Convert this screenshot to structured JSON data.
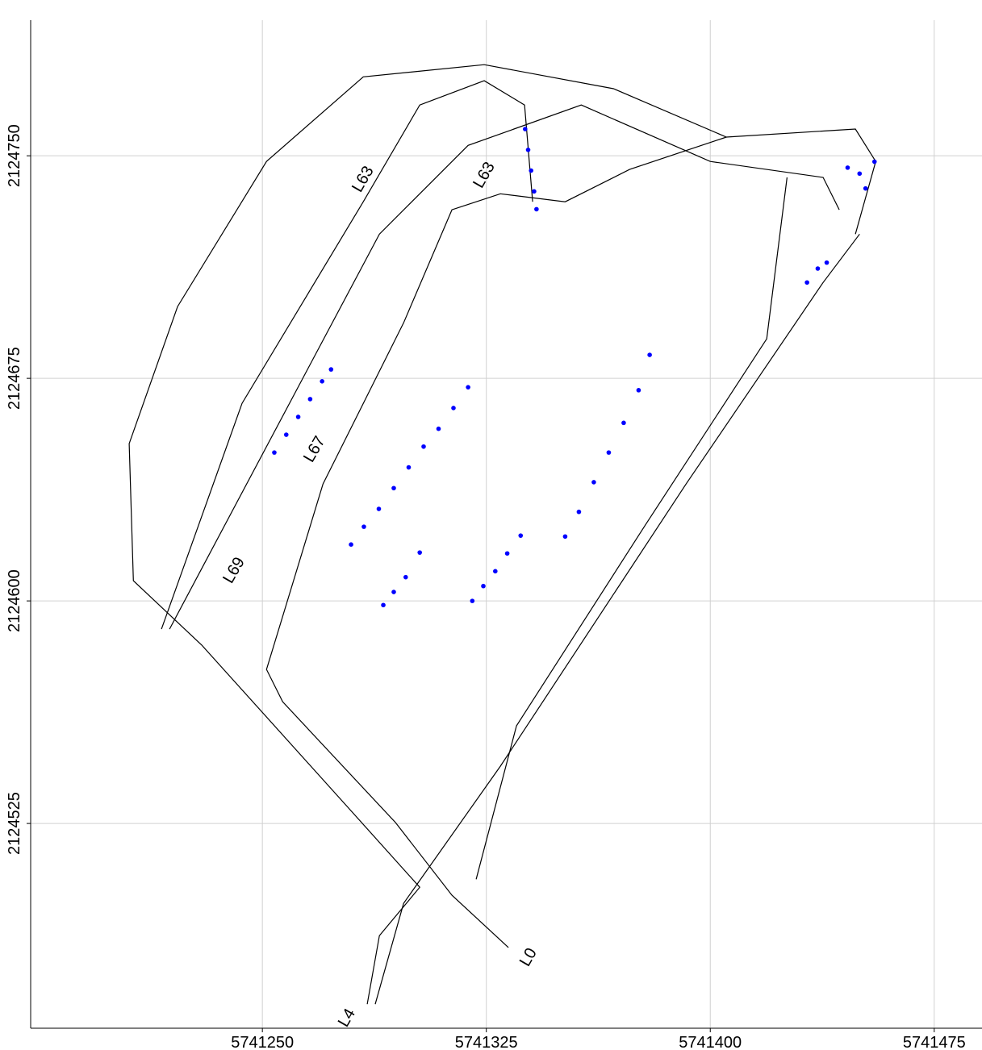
{
  "chart_data": {
    "type": "line",
    "xlim": [
      5741172.4,
      5741491
    ],
    "ylim": [
      2124456,
      2124795.7
    ],
    "xticks": [
      5741250,
      5741325,
      5741400,
      5741475
    ],
    "yticks": [
      2124525,
      2124600,
      2124675,
      2124750
    ],
    "grid": true,
    "series": [
      {
        "color": "#000000",
        "x": [
          5741285.1,
          5741289.2,
          5741302.7,
          5741278.4,
          5741229.7,
          5741206.8,
          5741205.4,
          5741221.6,
          5741251.4,
          5741283.8,
          5741324.3,
          5741367.6,
          5741405.4,
          5741448.6,
          5741455.4,
          5741448.6
        ],
        "y": [
          2124464.1,
          2124487.2,
          2124503.5,
          2124530.7,
          2124585.1,
          2124606.8,
          2124653.0,
          2124699.2,
          2124748.1,
          2124776.6,
          2124780.7,
          2124772.6,
          2124756.3,
          2124759.0,
          2124748.1,
          2124723.6
        ]
      },
      {
        "color": "#000000",
        "x": [
          5741332.4,
          5741313.5,
          5741294.6,
          5741256.8,
          5741251.4,
          5741270.3,
          5741297.3,
          5741313.5,
          5741329.7,
          5741351.4,
          5741373.0,
          5741405.4
        ],
        "y": [
          2124483.2,
          2124500.8,
          2124525.3,
          2124566.0,
          2124576.9,
          2124639.4,
          2124693.7,
          2124731.8,
          2124737.2,
          2124734.5,
          2124745.4,
          2124756.3
        ]
      },
      {
        "color": "#000000",
        "x": [
          5741321.6,
          5741335.1,
          5741378.4,
          5741418.9,
          5741425.7
        ],
        "y": [
          2124506.2,
          2124557.9,
          2124625.8,
          2124688.3,
          2124742.7
        ]
      },
      {
        "color": "#000000",
        "x": [
          5741287.8,
          5741297.3,
          5741329.7,
          5741391.9,
          5741437.8,
          5741450.0
        ],
        "y": [
          2124464.1,
          2124498.1,
          2124544.3,
          2124639.4,
          2124707.3,
          2124723.6
        ]
      },
      {
        "color": "#000000",
        "x": [
          5741216.2,
          5741243.2,
          5741283.8,
          5741302.7,
          5741324.3,
          5741337.8,
          5741340.5
        ],
        "y": [
          2124590.5,
          2124666.6,
          2124734.5,
          2124767.1,
          2124775.3,
          2124767.1,
          2124734.5
        ]
      },
      {
        "color": "#000000",
        "x": [
          5741218.9,
          5741289.2,
          5741318.9,
          5741356.8,
          5741400.0,
          5741437.8,
          5741443.2
        ],
        "y": [
          2124590.5,
          2124723.6,
          2124753.5,
          2124767.1,
          2124748.1,
          2124742.7,
          2124731.8
        ]
      }
    ],
    "points": {
      "color": "#0000ff",
      "x": [
        5741279.7,
        5741284,
        5741289,
        5741294,
        5741299,
        5741304,
        5741309,
        5741314,
        5741318.9,
        5741320.3,
        5741324,
        5741328,
        5741332,
        5741336.5,
        5741351.4,
        5741356,
        5741361,
        5741366,
        5741371,
        5741376,
        5741379.7,
        5741338,
        5741339,
        5741340,
        5741341,
        5741341.8,
        5741446,
        5741450,
        5741455,
        5741452,
        5741254,
        5741258,
        5741262,
        5741266,
        5741270,
        5741273,
        5741290.5,
        5741294,
        5741298,
        5741302.7,
        5741432.4,
        5741436,
        5741439
      ],
      "y": [
        2124619,
        2124625,
        2124631,
        2124638,
        2124645,
        2124652,
        2124658,
        2124665,
        2124672,
        2124600,
        2124605,
        2124610,
        2124616,
        2124622,
        2124621.7,
        2124630,
        2124640,
        2124650,
        2124660,
        2124671,
        2124682.9,
        2124759,
        2124752,
        2124745,
        2124738,
        2124732,
        2124746,
        2124744,
        2124748,
        2124739,
        2124650,
        2124656,
        2124662,
        2124668,
        2124674,
        2124678,
        2124598.6,
        2124603,
        2124608,
        2124616.3,
        2124707.3,
        2124712,
        2124714
      ]
    },
    "labels": [
      {
        "text": "L63",
        "x": 5741285.1,
        "y": 2124741.3
      },
      {
        "text": "L63",
        "x": 5741325.7,
        "y": 2124742.7
      },
      {
        "text": "L67",
        "x": 5741268.9,
        "y": 2124650.3
      },
      {
        "text": "L69",
        "x": 5741241.9,
        "y": 2124609.5
      },
      {
        "text": "L4",
        "x": 5741279.7,
        "y": 2124458.7
      },
      {
        "text": "L0",
        "x": 5741340.5,
        "y": 2124479.1
      }
    ]
  }
}
